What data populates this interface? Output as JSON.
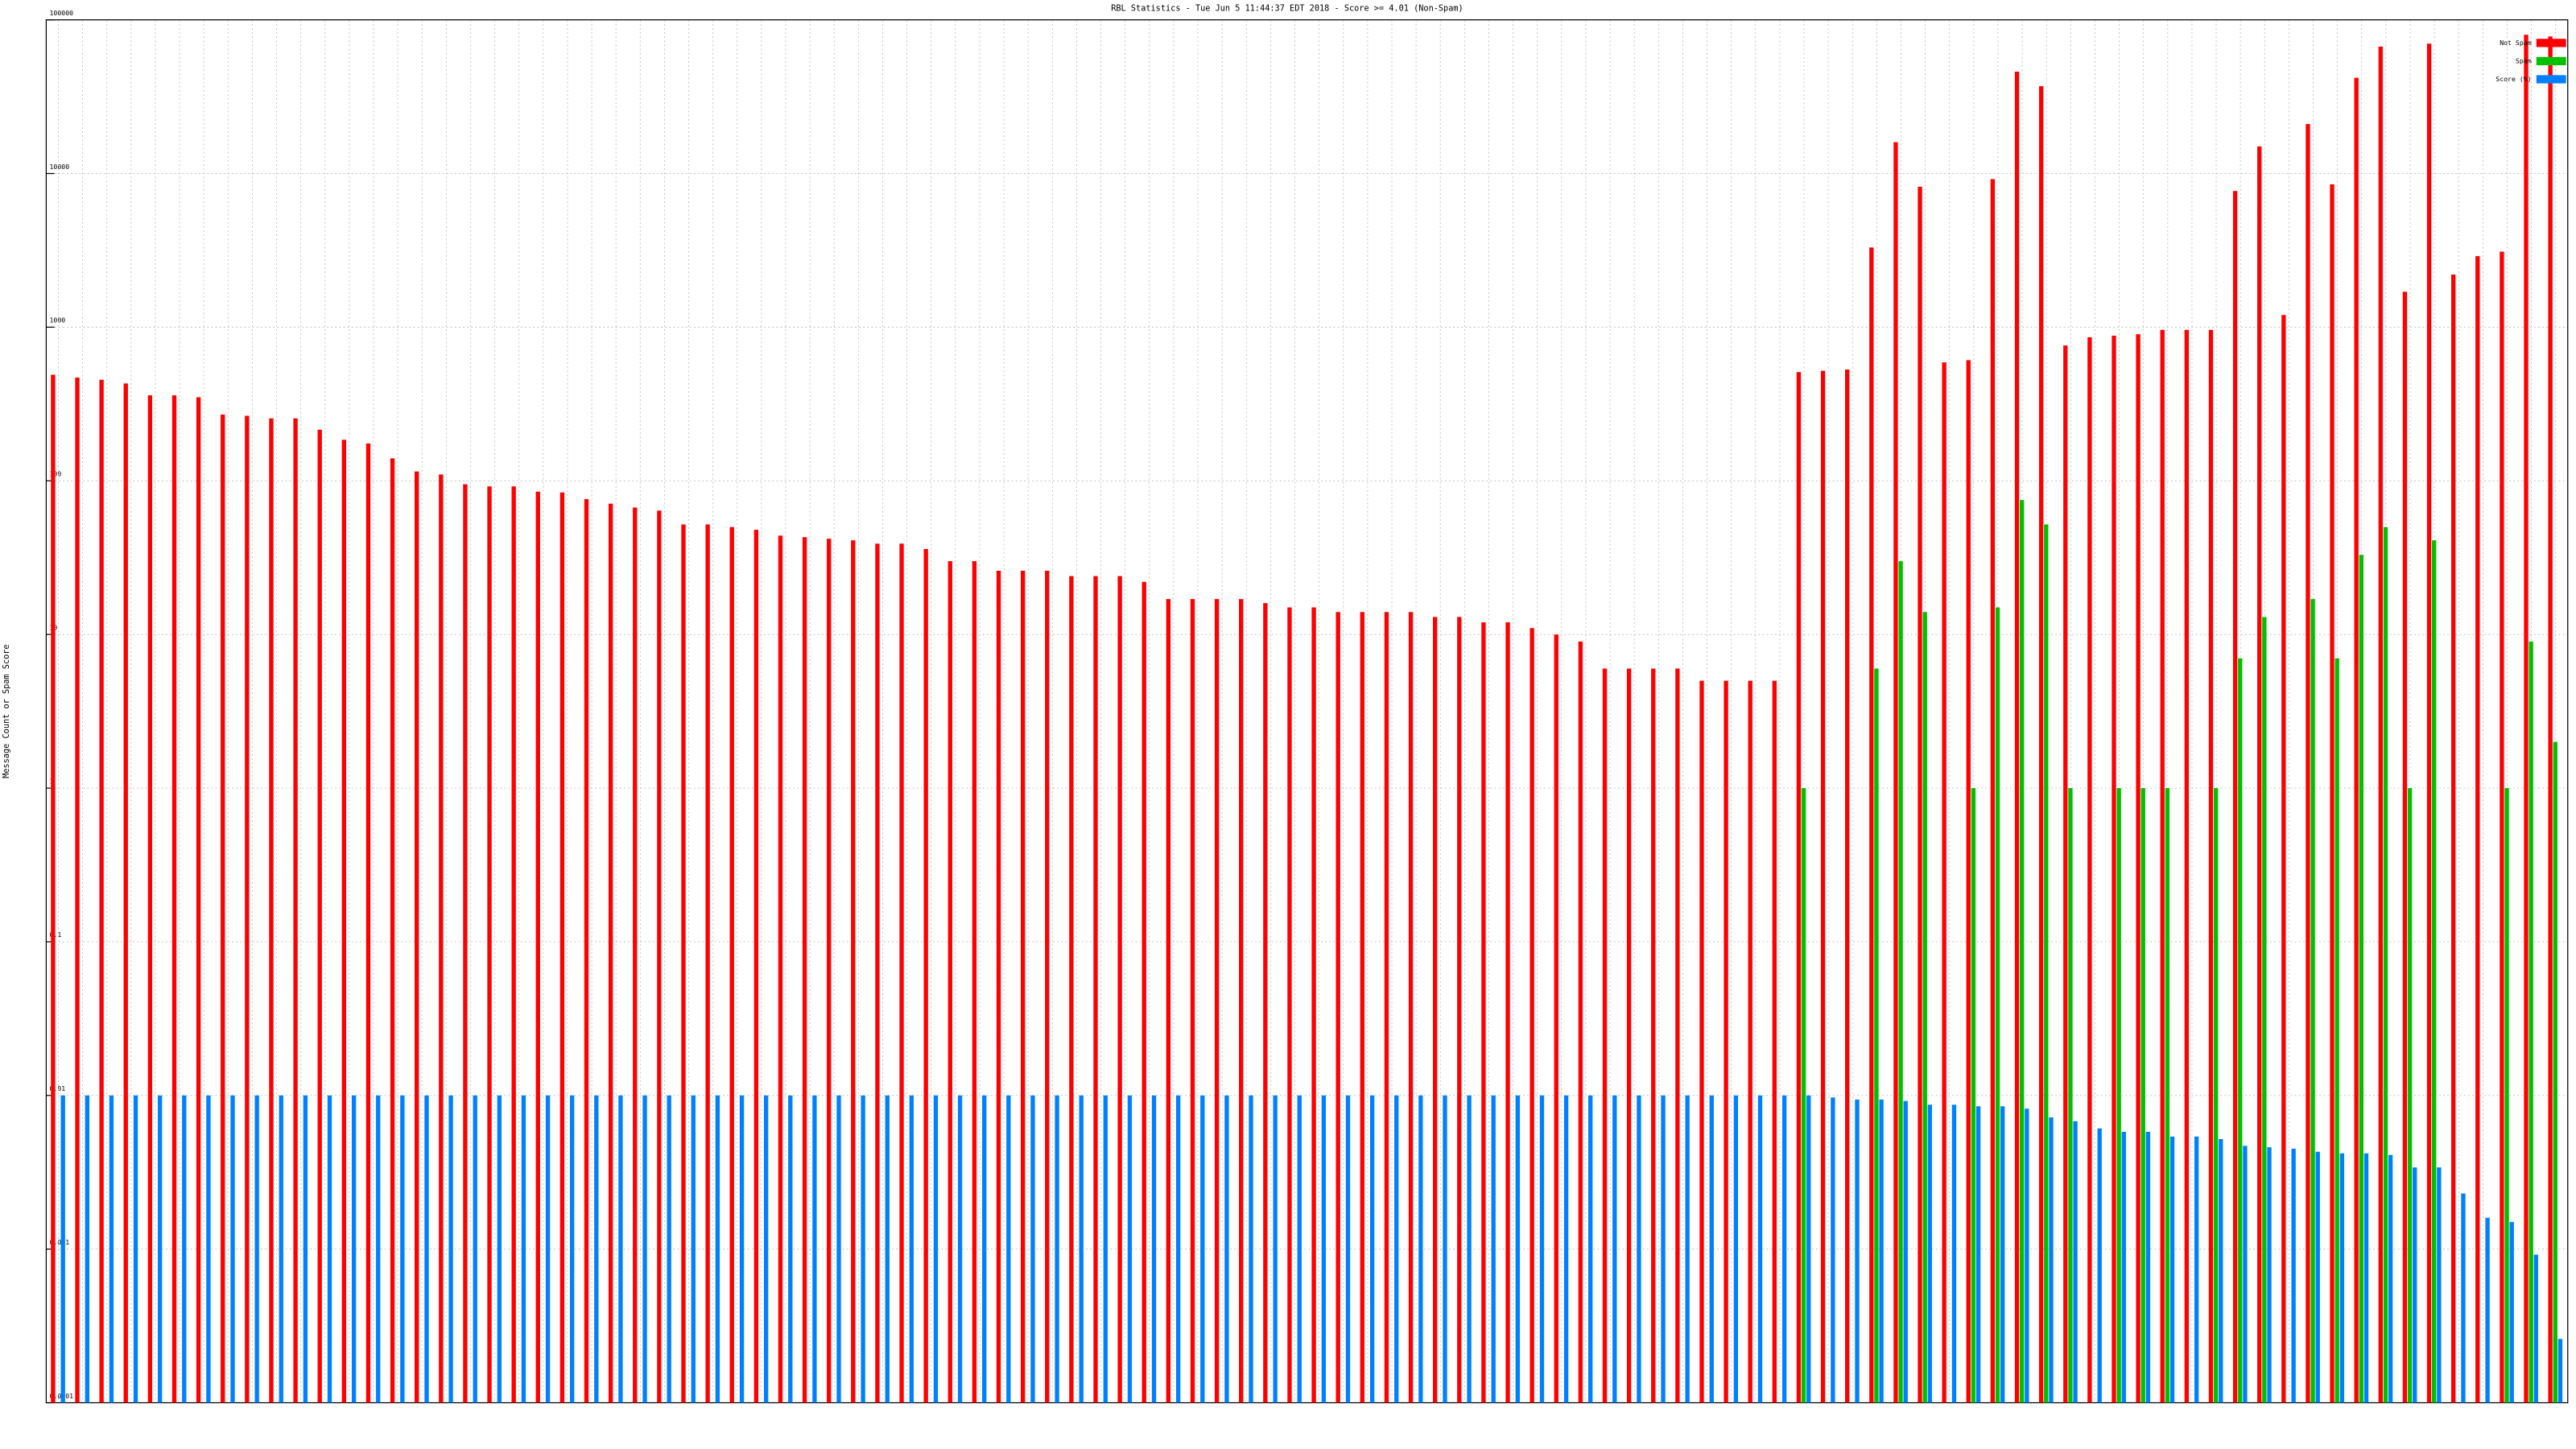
{
  "chart_data": {
    "type": "bar",
    "title": "RBL Statistics - Tue Jun  5 11:44:37 EDT 2018 - Score >= 4.01 (Non-Spam)",
    "y_label": "Message Count or Spam Score",
    "log_scale": true,
    "grid": true,
    "legend": "top-right",
    "categories": [
      null,
      null,
      null,
      null,
      null,
      null,
      null,
      null,
      null,
      null,
      null,
      null,
      null,
      null,
      null,
      null,
      null,
      null,
      null,
      null,
      null,
      null,
      null,
      null,
      null,
      null,
      null,
      null,
      null,
      null,
      null,
      null,
      null,
      null,
      null,
      null,
      null,
      null,
      null,
      null,
      null,
      null,
      null,
      null,
      null,
      null,
      null,
      null,
      null,
      null,
      null,
      null,
      null,
      null,
      null,
      null,
      null,
      null,
      null,
      null,
      null,
      null,
      null,
      null,
      null,
      null,
      null,
      null,
      null,
      null,
      null,
      null,
      null,
      null,
      null,
      null,
      null,
      null,
      null,
      null,
      null,
      null,
      null,
      null,
      null,
      null,
      null,
      null,
      null,
      null,
      null,
      null,
      null,
      null,
      null,
      null,
      null,
      null,
      null,
      null,
      null,
      null,
      null,
      null
    ],
    "series": [
      {
        "name": "Not Spam",
        "color": "#ff0000",
        "values": [
          490,
          470,
          455,
          430,
          360,
          360,
          350,
          270,
          265,
          255,
          255,
          215,
          185,
          175,
          140,
          115,
          110,
          95,
          92,
          92,
          85,
          84,
          76,
          71,
          67,
          64,
          52,
          52,
          50,
          48,
          44,
          43,
          42,
          41,
          39,
          39,
          36,
          30,
          30,
          26,
          26,
          26,
          24,
          24,
          24,
          22,
          17,
          17,
          17,
          17,
          16,
          15,
          15,
          14,
          14,
          14,
          14,
          13,
          13,
          12,
          12,
          11,
          10,
          9,
          6,
          6,
          6,
          6,
          5,
          5,
          5,
          5,
          510,
          520,
          530,
          3300,
          16000,
          8200,
          590,
          610,
          9200,
          46000,
          37000,
          760,
          860,
          880,
          900,
          960,
          960,
          960,
          7700,
          15000,
          1200,
          21000,
          8500,
          42000,
          67000,
          1700,
          70000,
          2200,
          2900,
          3100,
          80000,
          78000
        ]
      },
      {
        "name": "Spam",
        "color": "#00c000",
        "values": [
          null,
          null,
          null,
          null,
          null,
          null,
          null,
          null,
          null,
          null,
          null,
          null,
          null,
          null,
          null,
          null,
          null,
          null,
          null,
          null,
          null,
          null,
          null,
          null,
          null,
          null,
          null,
          null,
          null,
          null,
          null,
          null,
          null,
          null,
          null,
          null,
          null,
          null,
          null,
          null,
          null,
          null,
          null,
          null,
          null,
          null,
          null,
          null,
          null,
          null,
          null,
          null,
          null,
          null,
          null,
          null,
          null,
          null,
          null,
          null,
          null,
          null,
          null,
          null,
          null,
          null,
          null,
          null,
          null,
          null,
          null,
          null,
          1,
          null,
          null,
          6,
          30,
          14,
          null,
          1,
          15,
          75,
          52,
          1,
          null,
          1,
          1,
          1,
          null,
          1,
          7,
          13,
          null,
          17,
          7,
          33,
          50,
          1,
          41,
          null,
          null,
          1,
          9,
          2
        ]
      },
      {
        "name": "Score (%)",
        "color": "#0080ff",
        "values": [
          0.01,
          0.01,
          0.01,
          0.01,
          0.01,
          0.01,
          0.01,
          0.01,
          0.01,
          0.01,
          0.01,
          0.01,
          0.01,
          0.01,
          0.01,
          0.01,
          0.01,
          0.01,
          0.01,
          0.01,
          0.01,
          0.01,
          0.01,
          0.01,
          0.01,
          0.01,
          0.01,
          0.01,
          0.01,
          0.01,
          0.01,
          0.01,
          0.01,
          0.01,
          0.01,
          0.01,
          0.01,
          0.01,
          0.01,
          0.01,
          0.01,
          0.01,
          0.01,
          0.01,
          0.01,
          0.01,
          0.01,
          0.01,
          0.01,
          0.01,
          0.01,
          0.01,
          0.01,
          0.01,
          0.01,
          0.01,
          0.01,
          0.01,
          0.01,
          0.01,
          0.01,
          0.01,
          0.01,
          0.01,
          0.01,
          0.01,
          0.01,
          0.01,
          0.01,
          0.01,
          0.01,
          0.01,
          0.01,
          0.0097,
          0.0094,
          0.0094,
          0.0092,
          0.0087,
          0.0087,
          0.0085,
          0.0085,
          0.0082,
          0.0072,
          0.0068,
          0.0061,
          0.0058,
          0.0058,
          0.0054,
          0.0054,
          0.0052,
          0.0047,
          0.0046,
          0.0045,
          0.0043,
          0.0042,
          0.0042,
          0.0041,
          0.0034,
          0.0034,
          0.0023,
          0.0016,
          0.0015,
          0.00092,
          0.00026
        ]
      }
    ],
    "ylim": [
      0.0001,
      100000
    ],
    "yticks": [
      0.0001,
      0.001,
      0.01,
      0.1,
      1,
      10,
      100,
      1000,
      10000,
      100000
    ]
  }
}
